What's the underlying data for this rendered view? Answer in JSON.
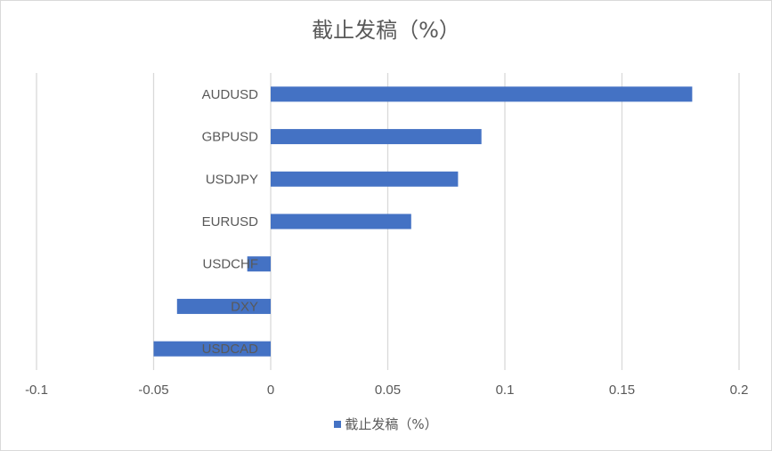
{
  "chart_data": {
    "type": "bar",
    "orientation": "horizontal",
    "title": "截止发稿（%）",
    "categories": [
      "AUDUSD",
      "GBPUSD",
      "USDJPY",
      "EURUSD",
      "USDCHF",
      "DXY",
      "USDCAD"
    ],
    "series": [
      {
        "name": "截止发稿（%）",
        "values": [
          0.18,
          0.09,
          0.08,
          0.06,
          -0.01,
          -0.04,
          -0.05
        ]
      }
    ],
    "xlim": [
      -0.1,
      0.2
    ],
    "xticks": [
      "-0.1",
      "-0.05",
      "0",
      "0.05",
      "0.1",
      "0.15",
      "0.2"
    ],
    "grid": "vertical",
    "legend_position": "bottom",
    "bar_color": "#4472c4",
    "grid_color": "#d9d9d9"
  }
}
